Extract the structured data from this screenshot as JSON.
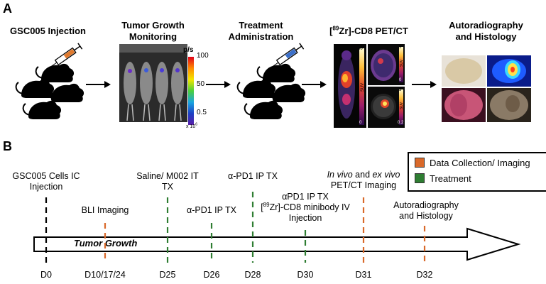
{
  "panel_a": {
    "letter": "A",
    "steps": [
      {
        "title_line1": "GSC005 Injection",
        "title_line2": ""
      },
      {
        "title_line1": "Tumor Growth",
        "title_line2": "Monitoring"
      },
      {
        "title_line1": "Treatment",
        "title_line2": "Administration"
      },
      {
        "title_prefix": "[",
        "title_sup": "89",
        "title_suffix": "Zr]-CD8 PET/CT"
      },
      {
        "title_line1": "Autoradiography",
        "title_line2": "and Histology"
      }
    ],
    "bli_scale": {
      "unit": "p/s",
      "max": "100",
      "mid": "50",
      "low": "0.5",
      "multiplier": "x 10",
      "multiplier_exp": "6"
    },
    "pet_scale": {
      "max": "40",
      "min": "0",
      "label": "SUV"
    },
    "pet_scale_2": {
      "max": "5",
      "min": "0",
      "label": "SUV"
    },
    "pet_scale_3": {
      "max": "3",
      "min": "0.2",
      "label": "SUV"
    }
  },
  "panel_b": {
    "letter": "B",
    "legend": [
      {
        "label": "Data Collection/ Imaging",
        "color": "#d9692a"
      },
      {
        "label": "Treatment",
        "color": "#2e7d32"
      }
    ],
    "arrow_label": "Tumor Growth",
    "events": [
      {
        "day": "D0",
        "line1": "GSC005 Cells IC",
        "line2": "Injection",
        "kind": "start"
      },
      {
        "day": "D10/17/24",
        "line1": "BLI Imaging",
        "line2": "",
        "kind": "imaging"
      },
      {
        "day": "D25",
        "line1": "Saline/ M002 IT",
        "line2": "TX",
        "kind": "treatment"
      },
      {
        "day": "D26",
        "line1": "α-PD1 IP TX",
        "line2": "",
        "kind": "treatment"
      },
      {
        "day": "D28",
        "line1": "α-PD1 IP TX",
        "line2": "",
        "kind": "treatment"
      },
      {
        "day": "D30",
        "line1": "αPD1 IP TX",
        "line2": "Zr]-CD8 minibody IV",
        "line2_prefix": "[",
        "line2_sup": "89",
        "line3": "Injection",
        "kind": "treatment"
      },
      {
        "day": "D31",
        "line1_italic": "In vivo",
        "line1_mid": " and ",
        "line1_italic2": "ex vivo",
        "line2": "PET/CT Imaging",
        "kind": "imaging"
      },
      {
        "day": "D32",
        "line1": "Autoradiography",
        "line2": "and Histology",
        "kind": "imaging"
      }
    ]
  }
}
